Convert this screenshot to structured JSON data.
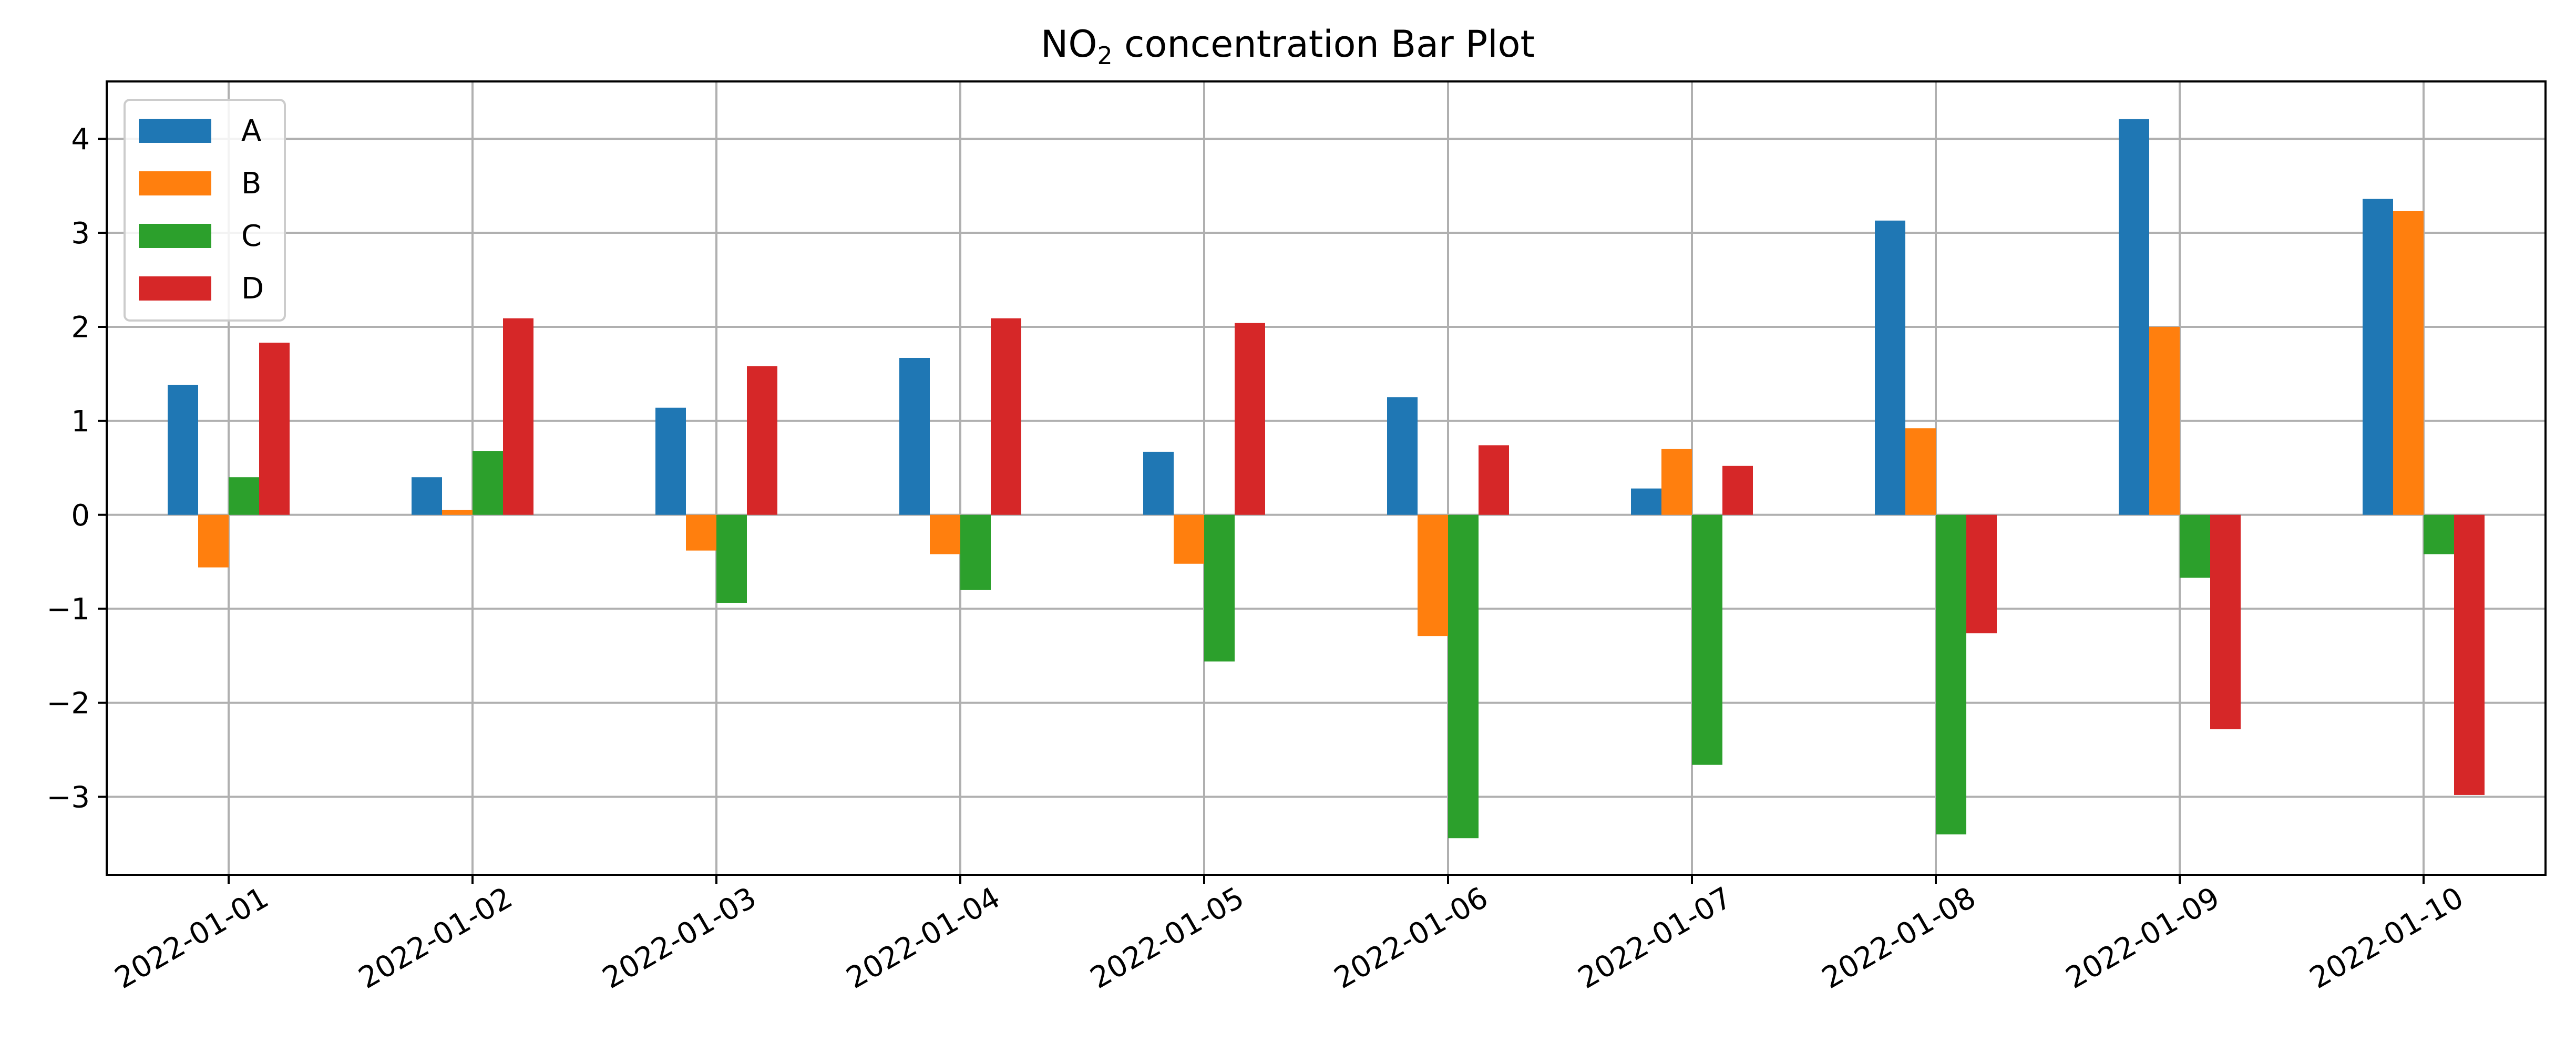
{
  "chart_data": {
    "type": "bar",
    "title_main": "NO",
    "title_sub": "2",
    "title_rest": " concentration Bar Plot",
    "categories": [
      "2022-01-01",
      "2022-01-02",
      "2022-01-03",
      "2022-01-04",
      "2022-01-05",
      "2022-01-06",
      "2022-01-07",
      "2022-01-08",
      "2022-01-09",
      "2022-01-10"
    ],
    "series": [
      {
        "name": "A",
        "color": "#1f77b4",
        "values": [
          1.38,
          0.4,
          1.14,
          1.67,
          0.67,
          1.25,
          0.28,
          3.13,
          4.21,
          3.36
        ]
      },
      {
        "name": "B",
        "color": "#ff7f0e",
        "values": [
          -0.56,
          0.05,
          -0.38,
          -0.42,
          -0.52,
          -1.29,
          0.7,
          0.92,
          2.0,
          3.23
        ]
      },
      {
        "name": "C",
        "color": "#2ca02c",
        "values": [
          0.4,
          0.68,
          -0.94,
          -0.8,
          -1.56,
          -3.44,
          -2.66,
          -3.4,
          -0.67,
          -0.42
        ]
      },
      {
        "name": "D",
        "color": "#d62728",
        "values": [
          1.83,
          2.09,
          1.58,
          2.09,
          2.04,
          0.74,
          0.52,
          -1.26,
          -2.28,
          -2.98
        ]
      }
    ],
    "yticks": [
      -3,
      -2,
      -1,
      0,
      1,
      2,
      3,
      4
    ],
    "ylim": [
      -3.83,
      4.61
    ],
    "grid": true,
    "legend_position": "top-left"
  }
}
